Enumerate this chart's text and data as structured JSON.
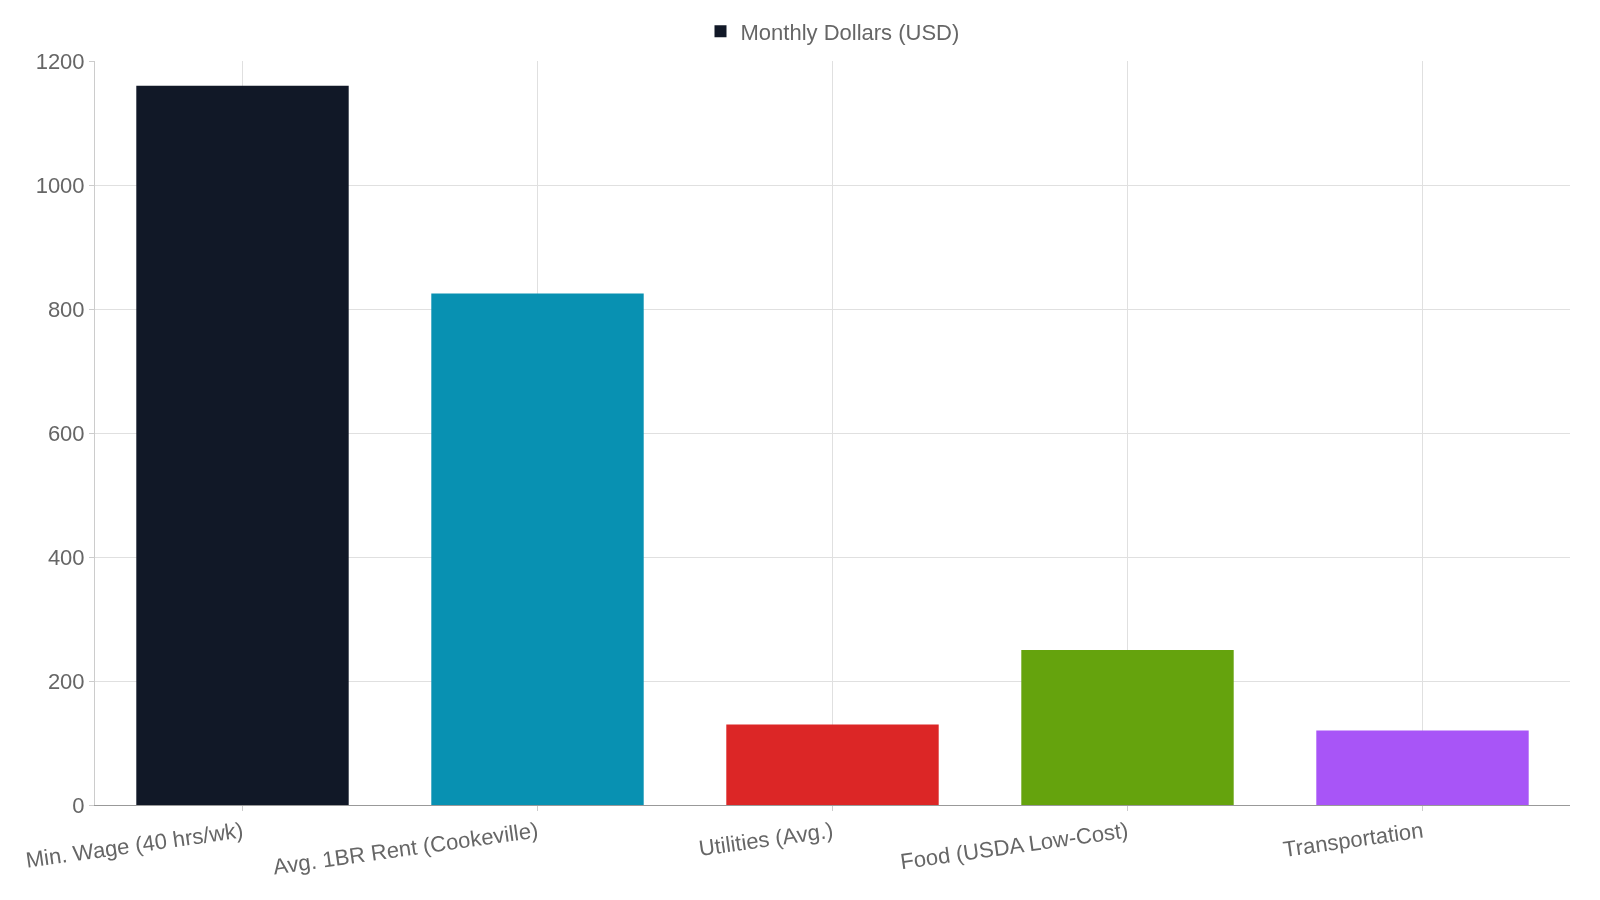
{
  "chart_data": {
    "type": "bar",
    "categories": [
      "Min. Wage (40 hrs/wk)",
      "Avg. 1BR Rent (Cookeville)",
      "Utilities (Avg.)",
      "Food (USDA Low-Cost)",
      "Transportation"
    ],
    "series": [
      {
        "name": "Monthly Dollars (USD)",
        "colors": [
          "#111827",
          "#0891b2",
          "#dc2626",
          "#65a30d",
          "#a855f7"
        ],
        "values": [
          1160,
          825,
          130,
          250,
          120
        ]
      }
    ],
    "ylim": [
      0,
      1200
    ],
    "yticks": [
      0,
      200,
      400,
      600,
      800,
      1000,
      1200
    ],
    "grid": true,
    "legend": "top"
  }
}
